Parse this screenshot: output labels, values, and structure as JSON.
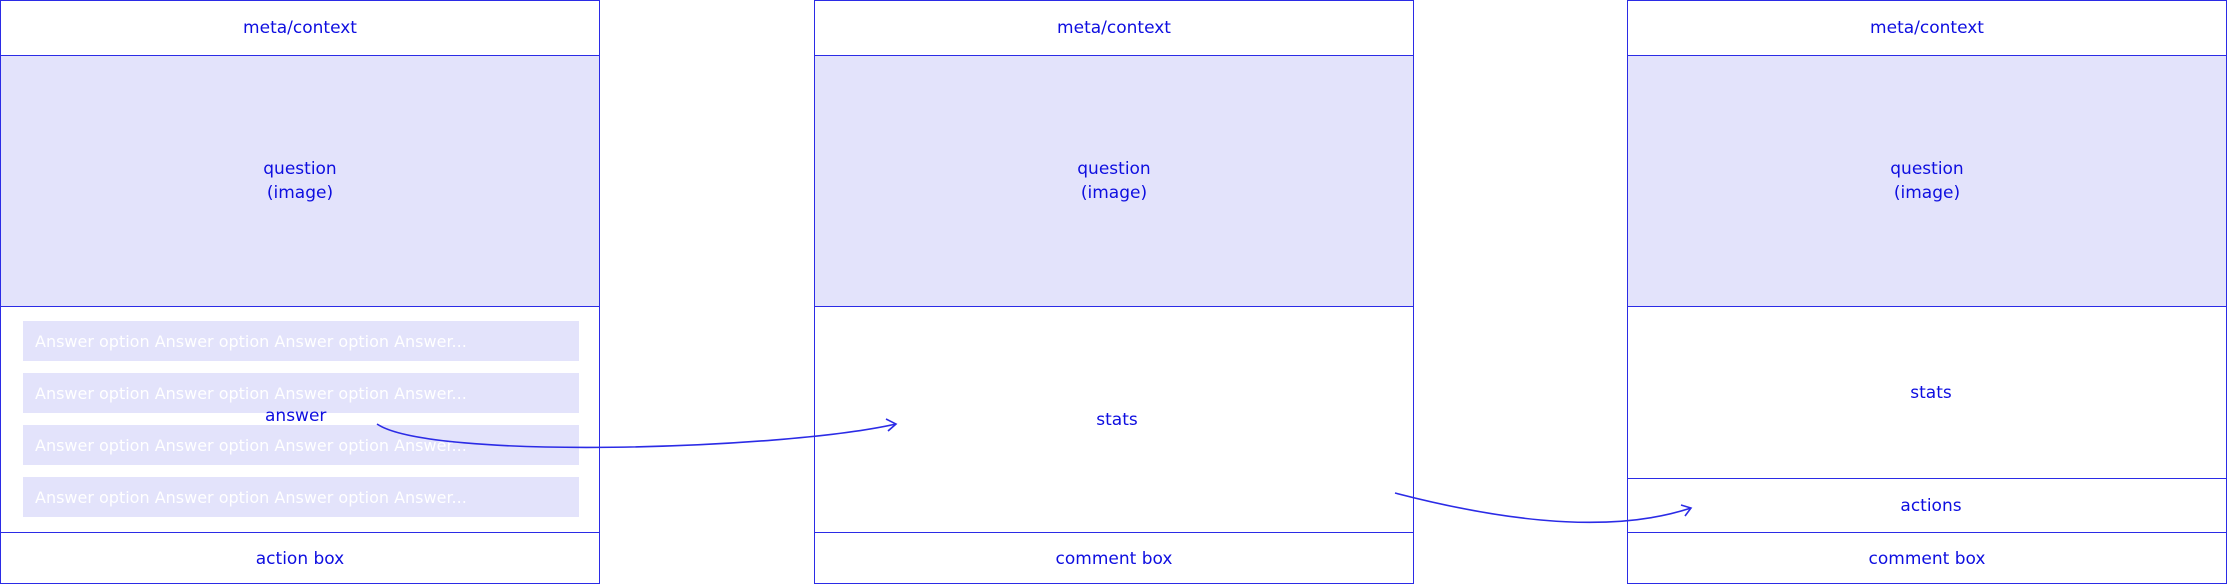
{
  "panels": [
    {
      "meta": "meta/context",
      "question_line1": "question",
      "question_line2": "(image)",
      "answer_options": [
        "Answer option Answer option Answer option Answer...",
        "Answer option Answer option Answer option Answer...",
        "Answer option Answer option Answer option Answer...",
        "Answer option Answer option Answer option Answer..."
      ],
      "answer_label": "answer",
      "footer": "action box"
    },
    {
      "meta": "meta/context",
      "question_line1": "question",
      "question_line2": "(image)",
      "stats": "stats",
      "footer": "comment box"
    },
    {
      "meta": "meta/context",
      "question_line1": "question",
      "question_line2": "(image)",
      "stats": "stats",
      "actions": "actions",
      "footer": "comment box"
    }
  ],
  "colors": {
    "stroke": "#2b2be6",
    "text": "#0e0ee0",
    "shade": "#e3e3fb"
  }
}
